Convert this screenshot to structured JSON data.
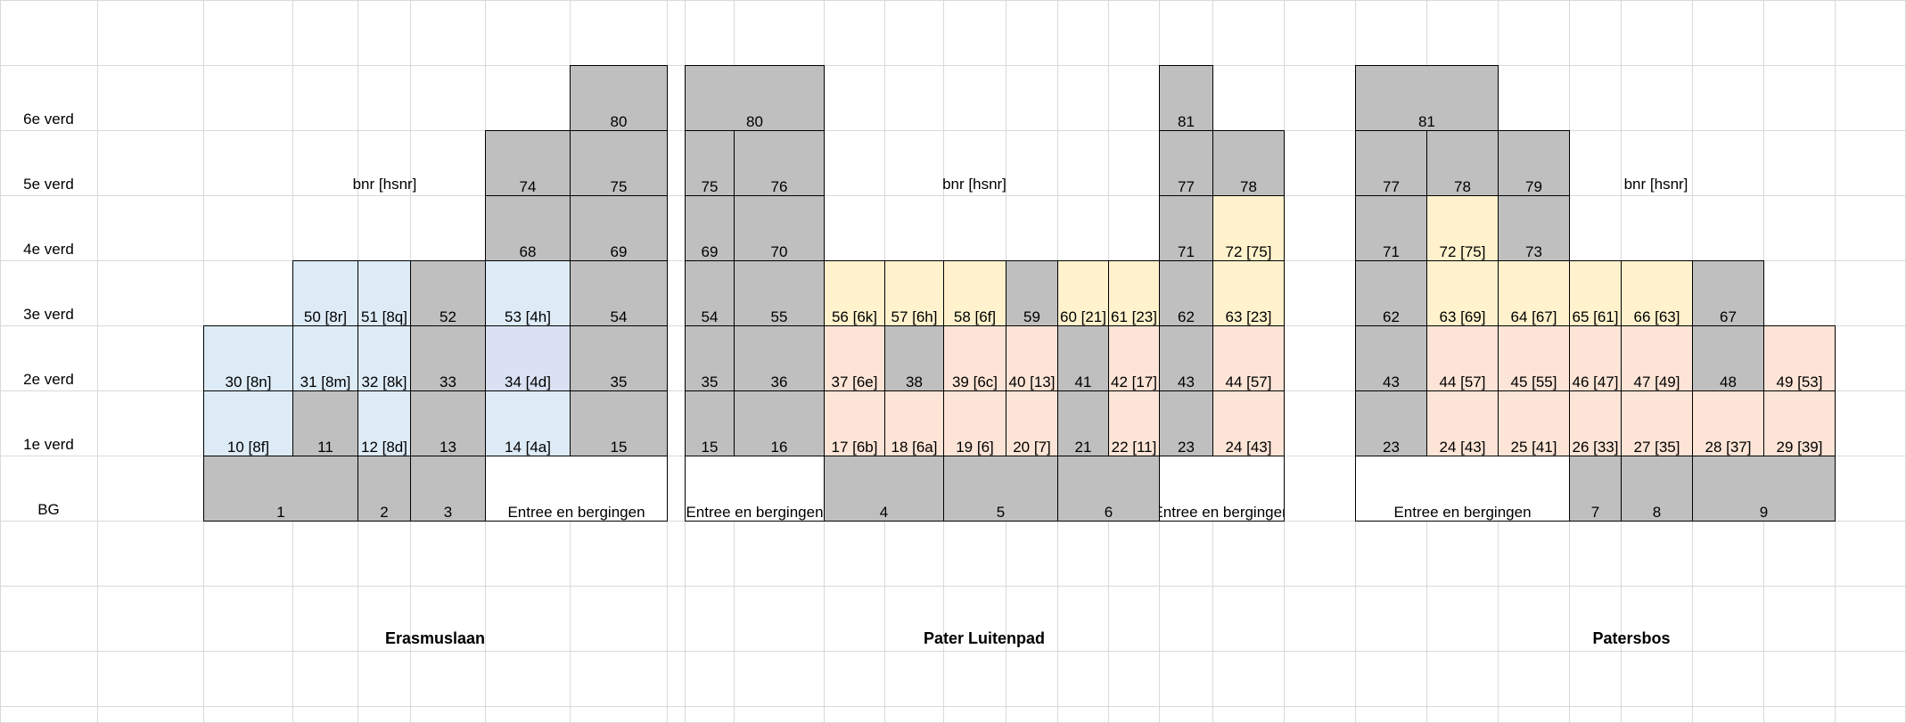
{
  "colors": {
    "grid_line": "#d9d9d9",
    "grey": "#bfbfbf",
    "blue": "#ddebf7",
    "lavender": "#d9e1f2",
    "yellow": "#fff2cc",
    "peach": "#fce4d6",
    "white": "#ffffff"
  },
  "floors": [
    "6e verd",
    "5e verd",
    "4e  verd",
    "3e verd",
    "2e verd",
    "1e verd",
    "BG"
  ],
  "notes": [
    "bnr [hsnr]",
    "bnr [hsnr]",
    "bnr [hsnr]"
  ],
  "streets": [
    "Erasmuslaan",
    "Pater Luitenpad",
    "Patersbos"
  ],
  "cells": [
    {
      "t": "80",
      "c": "grey"
    },
    {
      "t": "74",
      "c": "grey"
    },
    {
      "t": "75",
      "c": "grey"
    },
    {
      "t": "68",
      "c": "grey"
    },
    {
      "t": "69",
      "c": "grey"
    },
    {
      "t": "50 [8r]",
      "c": "blue"
    },
    {
      "t": "51 [8q]",
      "c": "blue"
    },
    {
      "t": "52",
      "c": "grey"
    },
    {
      "t": "53 [4h]",
      "c": "blue"
    },
    {
      "t": "54",
      "c": "grey"
    },
    {
      "t": "30 [8n]",
      "c": "blue"
    },
    {
      "t": "31 [8m]",
      "c": "blue"
    },
    {
      "t": "32 [8k]",
      "c": "blue"
    },
    {
      "t": "33",
      "c": "grey"
    },
    {
      "t": "34 [4d]",
      "c": "lavender"
    },
    {
      "t": "35",
      "c": "grey"
    },
    {
      "t": "10 [8f]",
      "c": "blue"
    },
    {
      "t": "11",
      "c": "grey"
    },
    {
      "t": "12 [8d]",
      "c": "blue"
    },
    {
      "t": "13",
      "c": "grey"
    },
    {
      "t": "14 [4a]",
      "c": "blue"
    },
    {
      "t": "15",
      "c": "grey"
    },
    {
      "t": "1",
      "c": "grey"
    },
    {
      "t": "2",
      "c": "grey"
    },
    {
      "t": "3",
      "c": "grey"
    },
    {
      "t": "Entree en bergingen",
      "c": "white"
    },
    {
      "t": "80",
      "c": "grey"
    },
    {
      "t": "75",
      "c": "grey"
    },
    {
      "t": "76",
      "c": "grey"
    },
    {
      "t": "69",
      "c": "grey"
    },
    {
      "t": "70",
      "c": "grey"
    },
    {
      "t": "54",
      "c": "grey"
    },
    {
      "t": "55",
      "c": "grey"
    },
    {
      "t": "56 [6k]",
      "c": "yellow"
    },
    {
      "t": "57 [6h]",
      "c": "yellow"
    },
    {
      "t": "58 [6f]",
      "c": "yellow"
    },
    {
      "t": "59",
      "c": "grey"
    },
    {
      "t": "60 [21]",
      "c": "yellow"
    },
    {
      "t": "61  [23]",
      "c": "yellow"
    },
    {
      "t": "35",
      "c": "grey"
    },
    {
      "t": "36",
      "c": "grey"
    },
    {
      "t": "37 [6e]",
      "c": "peach"
    },
    {
      "t": "38",
      "c": "grey"
    },
    {
      "t": "39 [6c]",
      "c": "peach"
    },
    {
      "t": "40 [13]",
      "c": "peach"
    },
    {
      "t": "41",
      "c": "grey"
    },
    {
      "t": "42 [17]",
      "c": "peach"
    },
    {
      "t": "15",
      "c": "grey"
    },
    {
      "t": "16",
      "c": "grey"
    },
    {
      "t": "17 [6b]",
      "c": "peach"
    },
    {
      "t": "18 [6a]",
      "c": "peach"
    },
    {
      "t": "19 [6]",
      "c": "peach"
    },
    {
      "t": "20 [7]",
      "c": "peach"
    },
    {
      "t": "21",
      "c": "grey"
    },
    {
      "t": "22 [11]",
      "c": "peach"
    },
    {
      "t": "Entree en bergingen",
      "c": "white"
    },
    {
      "t": "4",
      "c": "grey"
    },
    {
      "t": "5",
      "c": "grey"
    },
    {
      "t": "6",
      "c": "grey"
    },
    {
      "t": "81",
      "c": "grey"
    },
    {
      "t": "77",
      "c": "grey"
    },
    {
      "t": "78",
      "c": "grey"
    },
    {
      "t": "71",
      "c": "grey"
    },
    {
      "t": "72 [75]",
      "c": "yellow"
    },
    {
      "t": "62",
      "c": "grey"
    },
    {
      "t": "63 [23]",
      "c": "yellow"
    },
    {
      "t": "43",
      "c": "grey"
    },
    {
      "t": "44 [57]",
      "c": "peach"
    },
    {
      "t": "23",
      "c": "grey"
    },
    {
      "t": "24 [43]",
      "c": "peach"
    },
    {
      "t": "Entree en bergingen",
      "c": "white"
    },
    {
      "t": "81",
      "c": "grey"
    },
    {
      "t": "77",
      "c": "grey"
    },
    {
      "t": "78",
      "c": "grey"
    },
    {
      "t": "79",
      "c": "grey"
    },
    {
      "t": "71",
      "c": "grey"
    },
    {
      "t": "72 [75]",
      "c": "yellow"
    },
    {
      "t": "73",
      "c": "grey"
    },
    {
      "t": "62",
      "c": "grey"
    },
    {
      "t": "63 [69]",
      "c": "yellow"
    },
    {
      "t": "64 [67]",
      "c": "yellow"
    },
    {
      "t": "65 [61]",
      "c": "yellow"
    },
    {
      "t": "66 [63]",
      "c": "yellow"
    },
    {
      "t": "67",
      "c": "grey"
    },
    {
      "t": "43",
      "c": "grey"
    },
    {
      "t": "44 [57]",
      "c": "peach"
    },
    {
      "t": "45 [55]",
      "c": "peach"
    },
    {
      "t": "46 [47]",
      "c": "peach"
    },
    {
      "t": "47 [49]",
      "c": "peach"
    },
    {
      "t": "48",
      "c": "grey"
    },
    {
      "t": "49 [53]",
      "c": "peach"
    },
    {
      "t": "23",
      "c": "grey"
    },
    {
      "t": "24 [43]",
      "c": "peach"
    },
    {
      "t": "25 [41]",
      "c": "peach"
    },
    {
      "t": "26 [33]",
      "c": "peach"
    },
    {
      "t": "27 [35]",
      "c": "peach"
    },
    {
      "t": "28 [37]",
      "c": "peach"
    },
    {
      "t": "29 [39]",
      "c": "peach"
    },
    {
      "t": "Entree en bergingen",
      "c": "white"
    },
    {
      "t": "7",
      "c": "grey"
    },
    {
      "t": "8",
      "c": "grey"
    },
    {
      "t": "9",
      "c": "grey"
    }
  ]
}
